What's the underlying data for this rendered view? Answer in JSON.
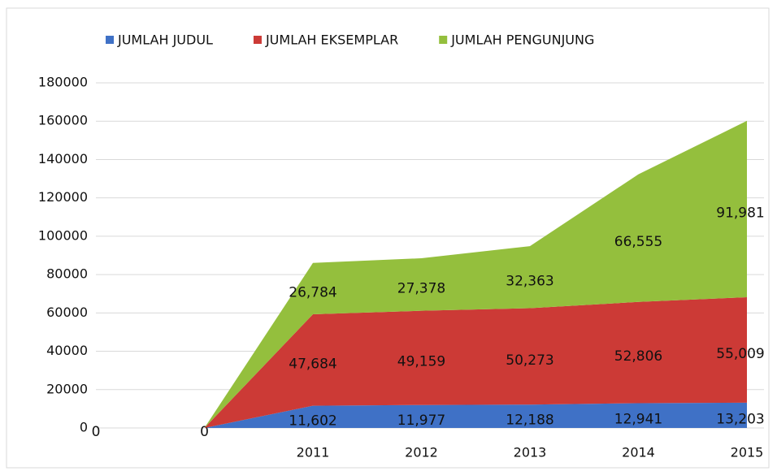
{
  "chart_data": {
    "type": "stacked_area",
    "categories": [
      null,
      null,
      "2011",
      "2012",
      "2013",
      "2014",
      "2015"
    ],
    "series": [
      {
        "name": "JUMLAH JUDUL",
        "color": "#3f71c6",
        "values": [
          0,
          0,
          11602,
          11977,
          12188,
          12941,
          13203
        ],
        "value_labels": [
          "0",
          "0",
          "11,602",
          "11,977",
          "12,188",
          "12,941",
          "13,203"
        ]
      },
      {
        "name": "JUMLAH EKSEMPLAR",
        "color": "#cc3a36",
        "values": [
          0,
          0,
          47684,
          49159,
          50273,
          52806,
          55009
        ],
        "value_labels": [
          null,
          null,
          "47,684",
          "49,159",
          "50,273",
          "52,806",
          "55,009"
        ]
      },
      {
        "name": "JUMLAH PENGUNJUNG",
        "color": "#94bf3d",
        "values": [
          0,
          0,
          26784,
          27378,
          32363,
          66555,
          91981
        ],
        "value_labels": [
          null,
          null,
          "26,784",
          "27,378",
          "32,363",
          "66,555",
          "91,981"
        ]
      }
    ],
    "ylim": [
      0,
      180000
    ],
    "yticks": [
      0,
      20000,
      40000,
      60000,
      80000,
      100000,
      120000,
      140000,
      160000,
      180000
    ],
    "grid": true,
    "legend": "top"
  }
}
